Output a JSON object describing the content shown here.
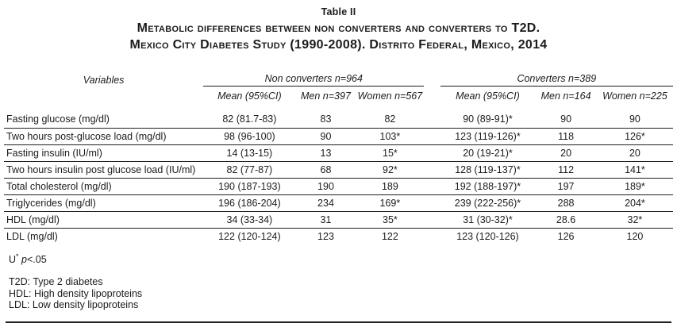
{
  "title": {
    "table_label": "Table II",
    "line1": "Metabolic differences between non converters and converters to T2D.",
    "line2": "Mexico City Diabetes Study (1990-2008). Distrito Federal, Mexico, 2014"
  },
  "table": {
    "variables_header": "Variables",
    "groups": [
      {
        "label": "Non converters n=964",
        "subheaders": [
          "Mean (95%CI)",
          "Men n=397",
          "Women n=567"
        ]
      },
      {
        "label": "Converters n=389",
        "subheaders": [
          "Mean  (95%CI)",
          "Men n=164",
          "Women n=225"
        ]
      }
    ],
    "rows": [
      {
        "variable": "Fasting glucose (mg/dl)",
        "values": [
          "82 (81.7-83)",
          "83",
          "82",
          "90 (89-91)*",
          "90",
          "90"
        ]
      },
      {
        "variable": "Two hours post-glucose load (mg/dl)",
        "values": [
          "98 (96-100)",
          "90",
          "103*",
          "123 (119-126)*",
          "118",
          "126*"
        ]
      },
      {
        "variable": "Fasting insulin (IU/ml)",
        "values": [
          "14 (13-15)",
          "13",
          "15*",
          "20 (19-21)*",
          "20",
          "20"
        ]
      },
      {
        "variable": "Two hours insulin post glucose load (IU/ml)",
        "values": [
          "82 (77-87)",
          "68",
          "92*",
          "128 (119-137)*",
          "112",
          "141*"
        ]
      },
      {
        "variable": "Total cholesterol (mg/dl)",
        "values": [
          "190 (187-193)",
          "190",
          "189",
          "192 (188-197)*",
          "197",
          "189*"
        ]
      },
      {
        "variable": "Triglycerides (mg/dl)",
        "values": [
          "196 (186-204)",
          "234",
          "169*",
          "239 (222-256)*",
          "288",
          "204*"
        ]
      },
      {
        "variable": "HDL (mg/dl)",
        "values": [
          "34 (33-34)",
          "31",
          "35*",
          "31 (30-32)*",
          "28.6",
          "32*"
        ]
      },
      {
        "variable": "LDL (mg/dl)",
        "values": [
          "122 (120-124)",
          "123",
          "122",
          "123 (120-126)",
          "126",
          "120"
        ]
      }
    ]
  },
  "footnotes": {
    "sig_u": "U",
    "sig_star": "*",
    "sig_p": "p",
    "sig_rest": "<.05",
    "abbreviations": [
      "T2D: Type 2 diabetes",
      "HDL: High density lipoproteins",
      "LDL: Low density lipoproteins"
    ]
  },
  "colors": {
    "text": "#1b1b1b",
    "rule": "#1f1f1f",
    "background": "#ffffff"
  }
}
